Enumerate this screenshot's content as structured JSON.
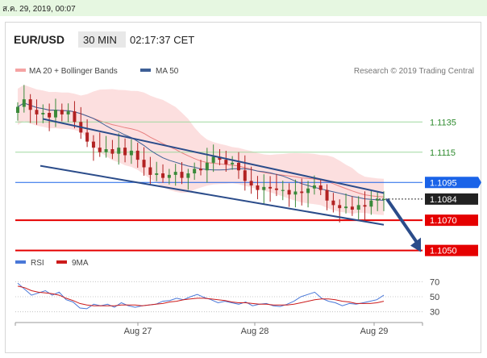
{
  "header": {
    "datetime": "ส.ค. 29, 2019, 00:07",
    "symbol": "EUR/USD",
    "interval": "30 MIN",
    "time": "02:17:37 CET"
  },
  "legend": {
    "ma20_bb": "MA 20 + Bollinger Bands",
    "ma50": "MA 50",
    "source": "Research © 2019 Trading Central",
    "rsi": "RSI",
    "ma9": "9MA"
  },
  "colors": {
    "bollinger": "#f5a3a3",
    "ma50": "#3e5f96",
    "channel": "#2b4c8a",
    "green_level": "#9fd89f",
    "blue_level": "#1a63e8",
    "red_level": "#e50000",
    "current_price_tag": "#222222",
    "up_candle": "#3a8a3a",
    "down_candle": "#b22222",
    "rsi_line": "#4a78d8",
    "ma9_line": "#cc1b1b"
  },
  "chart_data": [
    {
      "type": "candlestick",
      "title": "EUR/USD",
      "x_ticks": [
        "Aug 27",
        "Aug 28",
        "Aug 29"
      ],
      "ylim": [
        1.1045,
        1.1165
      ],
      "levels": [
        {
          "value": 1.1135,
          "label": "1.1135",
          "style": "green"
        },
        {
          "value": 1.1115,
          "label": "1.1115",
          "style": "green"
        },
        {
          "value": 1.1095,
          "label": "1.1095",
          "style": "blue"
        },
        {
          "value": 1.1084,
          "label": "1.1084",
          "style": "current"
        },
        {
          "value": 1.107,
          "label": "1.1070",
          "style": "red"
        },
        {
          "value": 1.105,
          "label": "1.1050",
          "style": "red"
        }
      ],
      "close": [
        1.1145,
        1.115,
        1.1143,
        1.114,
        1.1141,
        1.1138,
        1.1143,
        1.114,
        1.1142,
        1.1135,
        1.1128,
        1.1122,
        1.1118,
        1.1115,
        1.1117,
        1.1114,
        1.1118,
        1.1113,
        1.1116,
        1.111,
        1.1105,
        1.11,
        1.1101,
        1.1098,
        1.11,
        1.1102,
        1.1098,
        1.1101,
        1.1104,
        1.1103,
        1.1108,
        1.1112,
        1.111,
        1.1107,
        1.1108,
        1.1103,
        1.1096,
        1.1093,
        1.109,
        1.1092,
        1.1091,
        1.109,
        1.109,
        1.1087,
        1.1089,
        1.1088,
        1.1091,
        1.1093,
        1.109,
        1.1083,
        1.108,
        1.1078,
        1.1079,
        1.1077,
        1.108,
        1.1079,
        1.1083,
        1.1084,
        1.1084
      ],
      "projection": {
        "from": 1.1084,
        "to": 1.105
      }
    },
    {
      "type": "line",
      "title": "RSI",
      "ylim": [
        20,
        80
      ],
      "y_ticks": [
        70,
        50,
        30
      ],
      "series": [
        {
          "name": "RSI",
          "values": [
            68,
            60,
            52,
            55,
            58,
            52,
            56,
            46,
            43,
            35,
            34,
            40,
            38,
            40,
            36,
            42,
            38,
            36,
            38,
            39,
            40,
            44,
            45,
            48,
            46,
            50,
            53,
            49,
            46,
            42,
            44,
            42,
            40,
            43,
            38,
            40,
            41,
            38,
            37,
            40,
            44,
            50,
            53,
            56,
            48,
            44,
            42,
            38,
            41,
            40,
            42,
            44,
            46,
            52
          ]
        },
        {
          "name": "9MA",
          "values": [
            64,
            62,
            58,
            56,
            55,
            54,
            52,
            48,
            45,
            41,
            39,
            38,
            38,
            38,
            38,
            39,
            39,
            39,
            38,
            39,
            40,
            41,
            43,
            44,
            46,
            47,
            48,
            48,
            47,
            46,
            45,
            43,
            42,
            42,
            41,
            40,
            40,
            39,
            39,
            39,
            40,
            42,
            44,
            46,
            47,
            47,
            46,
            44,
            43,
            41,
            41,
            41,
            42,
            44
          ]
        }
      ]
    }
  ]
}
